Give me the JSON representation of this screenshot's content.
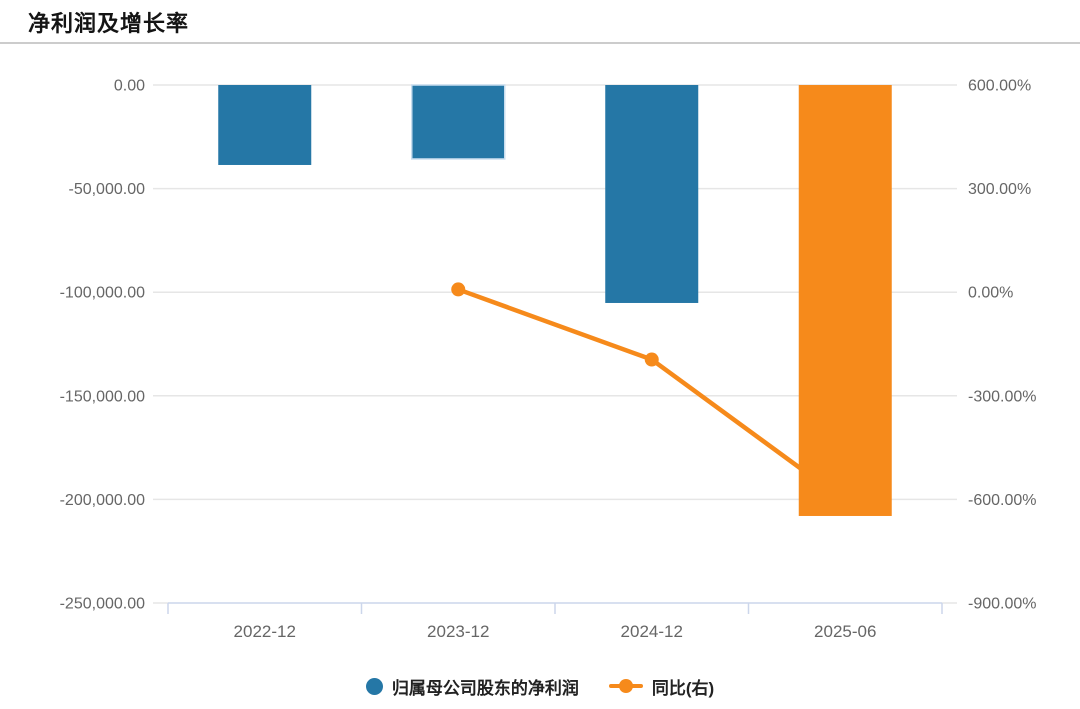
{
  "title": "净利润及增长率",
  "legend": {
    "items": [
      {
        "label": "归属母公司股东的净利润",
        "marker": "circle",
        "color": "#2577a6"
      },
      {
        "label": "同比(右)",
        "marker": "line-dot",
        "color": "#f68a1b"
      }
    ]
  },
  "chart_data": {
    "type": "bar+line combo, dual y-axes",
    "title": "净利润及增长率",
    "categories": [
      "2022-12",
      "2023-12",
      "2024-12",
      "2025-06"
    ],
    "series": [
      {
        "name": "归属母公司股东的净利润",
        "type": "bar",
        "axis": "left",
        "values": [
          -38600,
          -35700,
          -105200,
          -208000
        ],
        "point_colors": [
          "#2577a6",
          "#2577a6",
          "#2577a6",
          "#f68a1b"
        ],
        "selected_point": 1
      },
      {
        "name": "同比(右)",
        "type": "line",
        "axis": "right",
        "values": [
          null,
          8,
          -195,
          -605
        ],
        "color": "#f68a1b"
      }
    ],
    "left_axis": {
      "min": -250000,
      "max": 0,
      "ticks": [
        "0.00",
        "-50,000.00",
        "-100,000.00",
        "-150,000.00",
        "-200,000.00",
        "-250,000.00"
      ]
    },
    "right_axis": {
      "min": -900,
      "max": 600,
      "ticks": [
        "600.00%",
        "300.00%",
        "0.00%",
        "-300.00%",
        "-600.00%",
        "-900.00%"
      ]
    },
    "grid": true,
    "legend_position": "bottom-center"
  },
  "colors": {
    "bar_blue": "#2577a6",
    "orange": "#f68a1b",
    "gridline": "#e6e6e6",
    "axis_line": "#ccd6eb",
    "axis_label": "#666666",
    "selected_bar_border": "#c9deef",
    "divider": "#cccccc"
  }
}
